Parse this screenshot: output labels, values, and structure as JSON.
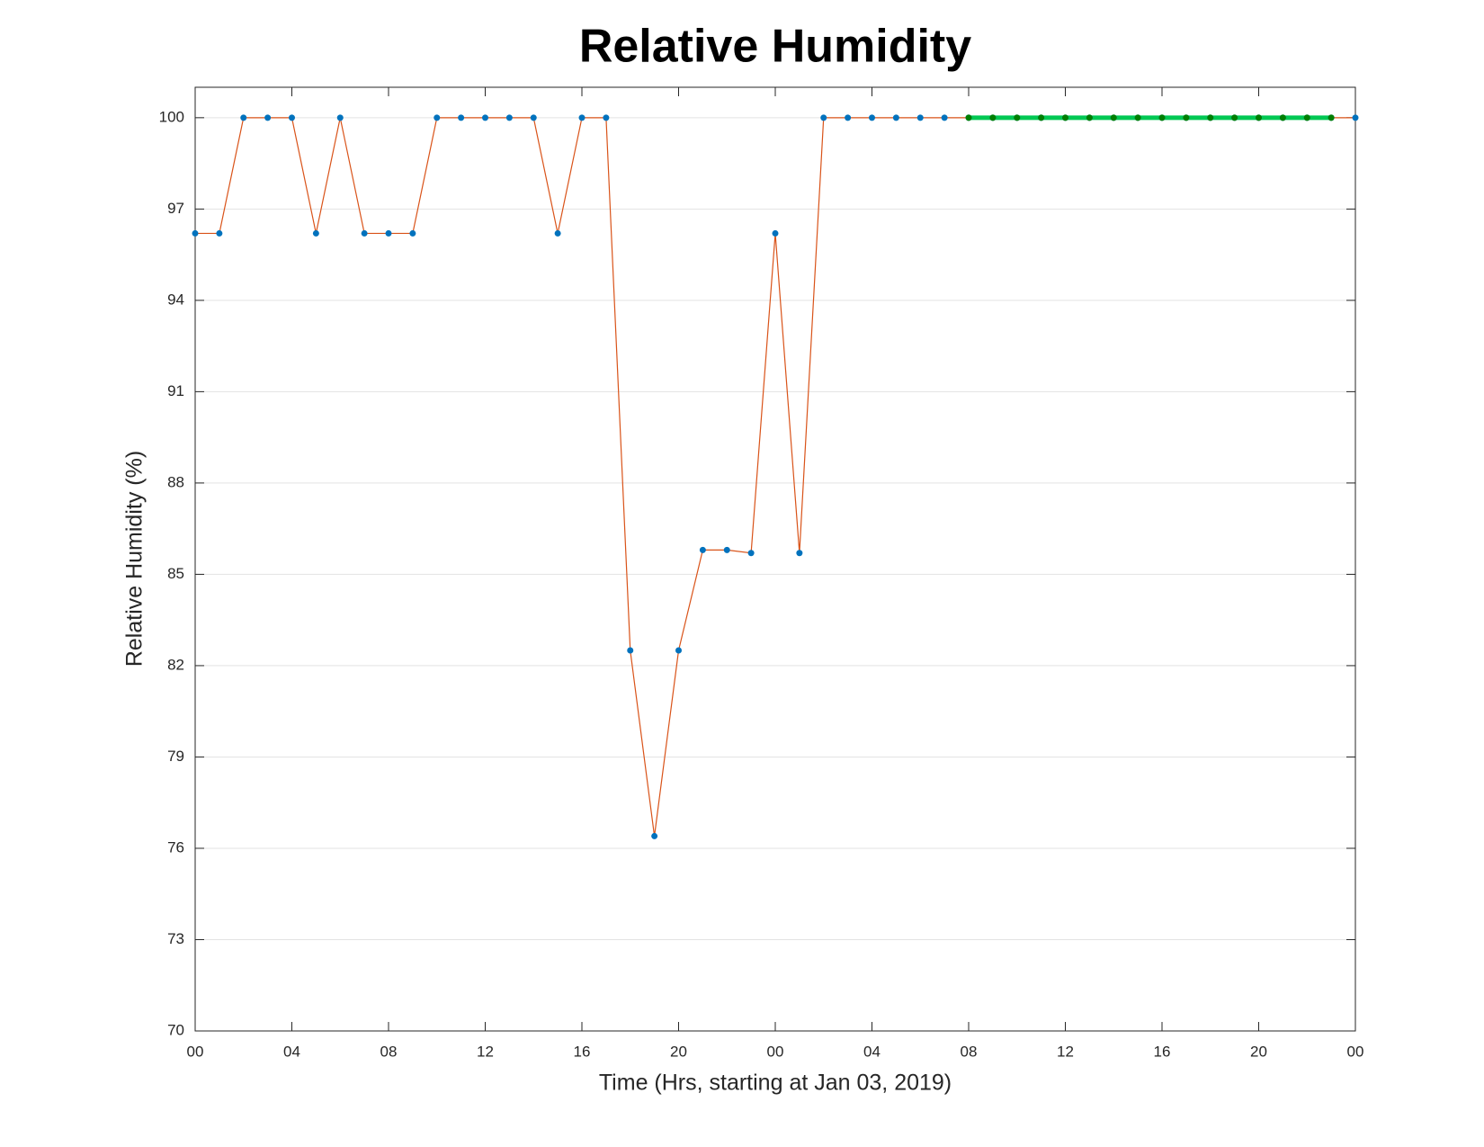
{
  "chart_data": {
    "type": "line",
    "title": "Relative Humidity",
    "x_label": "Time (Hrs, starting at Jan 03, 2019)",
    "y_label": "Relative Humidity (%)",
    "xlim": [
      0,
      48
    ],
    "ylim": [
      70,
      101
    ],
    "xticks": [
      {
        "value": 0,
        "label": "00"
      },
      {
        "value": 4,
        "label": "04"
      },
      {
        "value": 8,
        "label": "08"
      },
      {
        "value": 12,
        "label": "12"
      },
      {
        "value": 16,
        "label": "16"
      },
      {
        "value": 20,
        "label": "20"
      },
      {
        "value": 24,
        "label": "00"
      },
      {
        "value": 28,
        "label": "04"
      },
      {
        "value": 32,
        "label": "08"
      },
      {
        "value": 36,
        "label": "12"
      },
      {
        "value": 40,
        "label": "16"
      },
      {
        "value": 44,
        "label": "20"
      },
      {
        "value": 48,
        "label": "00"
      }
    ],
    "yticks": [
      70,
      73,
      76,
      79,
      82,
      85,
      88,
      91,
      94,
      97,
      100
    ],
    "grid": true,
    "series": [
      {
        "color": "#d95319",
        "marker_color": "#0072bd",
        "line_width": 1.2,
        "x": [
          0,
          1,
          2,
          3,
          4,
          5,
          6,
          7,
          8,
          9,
          10,
          11,
          12,
          13,
          14,
          15,
          16,
          17,
          18,
          19,
          20,
          21,
          22,
          23,
          24,
          25,
          26,
          27,
          28,
          29,
          30,
          31,
          32,
          33,
          34,
          35,
          36,
          37,
          38,
          39,
          40,
          41,
          42,
          43,
          44,
          45,
          46,
          47,
          48
        ],
        "values": [
          96.2,
          96.2,
          100,
          100,
          100,
          96.2,
          100,
          96.2,
          96.2,
          96.2,
          100,
          100,
          100,
          100,
          100,
          96.2,
          100,
          100,
          82.5,
          76.4,
          82.5,
          85.8,
          85.8,
          85.7,
          96.2,
          85.7,
          100,
          100,
          100,
          100,
          100,
          100,
          100,
          100,
          100,
          100,
          100,
          100,
          100,
          100,
          100,
          100,
          100,
          100,
          100,
          100,
          100,
          100,
          100
        ]
      },
      {
        "color": "#00c853",
        "marker_color": "#007f00",
        "line_width": 5,
        "x": [
          32,
          33,
          34,
          35,
          36,
          37,
          38,
          39,
          40,
          41,
          42,
          43,
          44,
          45,
          46,
          47
        ],
        "values": [
          100,
          100,
          100,
          100,
          100,
          100,
          100,
          100,
          100,
          100,
          100,
          100,
          100,
          100,
          100,
          100
        ]
      }
    ]
  }
}
